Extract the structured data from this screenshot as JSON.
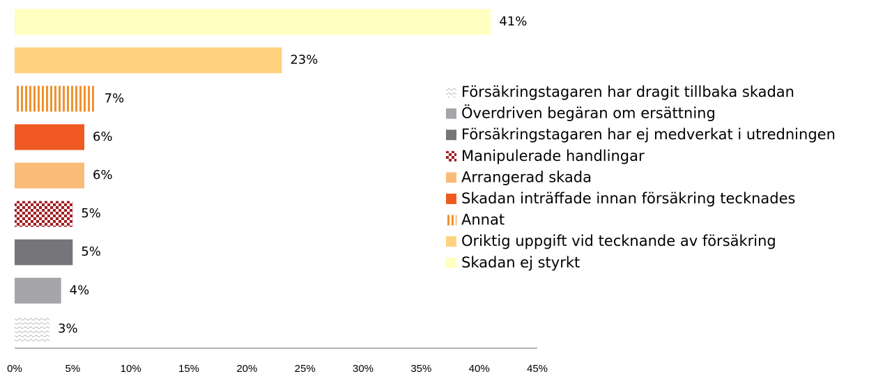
{
  "chart_data": {
    "type": "bar",
    "orientation": "horizontal",
    "categories": [
      "Skadan ej styrkt",
      "Oriktig uppgift vid tecknande av försäkring",
      "Annat",
      "Skadan inträffade innan försäkring tecknades",
      "Arrangerad skada",
      "Manipulerade handlingar",
      "Försäkringstagaren har ej medverkat i utredningen",
      "Överdriven begäran om ersättning",
      "Försäkringstagaren har dragit tillbaka skadan"
    ],
    "values": [
      41,
      23,
      7,
      6,
      6,
      5,
      5,
      4,
      3
    ],
    "value_labels": [
      "41%",
      "23%",
      "7%",
      "6%",
      "6%",
      "5%",
      "5%",
      "4%",
      "3%"
    ],
    "colors": [
      "#ffffc0",
      "#ffd27f",
      "#f0922f",
      "#f05a22",
      "#fbbb78",
      "#a01f23",
      "#76767a",
      "#a6a6aa",
      "#c8c8c8"
    ],
    "patterns": [
      "solid",
      "solid",
      "stripes",
      "solid",
      "solid",
      "checker",
      "solid",
      "solid",
      "zigzag"
    ],
    "xlim": [
      0,
      45
    ],
    "xticks": [
      {
        "value": 0,
        "label": "0%"
      },
      {
        "value": 5,
        "label": "5%"
      },
      {
        "value": 10,
        "label": "10%"
      },
      {
        "value": 15,
        "label": "15%"
      },
      {
        "value": 20,
        "label": "20%"
      },
      {
        "value": 25,
        "label": "25%"
      },
      {
        "value": 30,
        "label": "30%"
      },
      {
        "value": 35,
        "label": "35%"
      },
      {
        "value": 40,
        "label": "40%"
      },
      {
        "value": 45,
        "label": "45%"
      }
    ],
    "legend": "right"
  }
}
